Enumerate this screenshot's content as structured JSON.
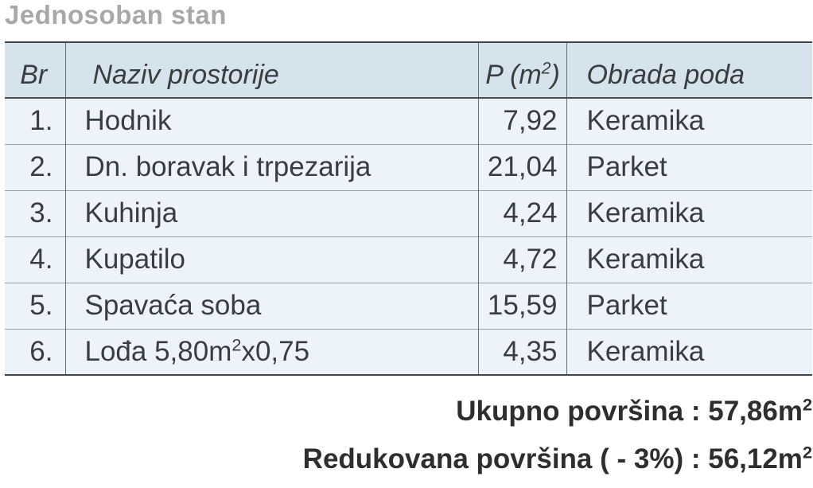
{
  "page_title": "Jednosoban stan",
  "colors": {
    "title_gray": "#a8a8a8",
    "header_bg": "#d5e3ed",
    "row_bg": "#ecf3f9",
    "text_dark": "#393d41",
    "summary_text": "#2e2e2e",
    "border_dark": "#41464a",
    "border_vertical": "#646e76",
    "border_row": "#98a0a7"
  },
  "table": {
    "columns": {
      "br": "Br",
      "name": "Naziv prostorije",
      "area_prefix": "P (m",
      "area_sup": "2",
      "area_suffix": ")",
      "floor": "Obrada poda"
    },
    "rows": [
      {
        "br": "1.",
        "name": "Hodnik",
        "area": "7,92",
        "floor": "Keramika"
      },
      {
        "br": "2.",
        "name": "Dn. boravak i trpezarija",
        "area": "21,04",
        "floor": "Parket"
      },
      {
        "br": "3.",
        "name": "Kuhinja",
        "area": "4,24",
        "floor": "Keramika"
      },
      {
        "br": "4.",
        "name": "Kupatilo",
        "area": "4,72",
        "floor": "Keramika"
      },
      {
        "br": "5.",
        "name": "Spavaća soba",
        "area": "15,59",
        "floor": "Parket"
      },
      {
        "br": "6.",
        "name_prefix": "Lođa 5,80m",
        "name_sup": "2",
        "name_suffix": "x0,75",
        "area": "4,35",
        "floor": "Keramika"
      }
    ]
  },
  "summary": {
    "total_label": "Ukupno površina : 57,86m",
    "total_sup": "2",
    "reduced_label": "Redukovana površina ( - 3%) : 56,12m",
    "reduced_sup": "2"
  }
}
